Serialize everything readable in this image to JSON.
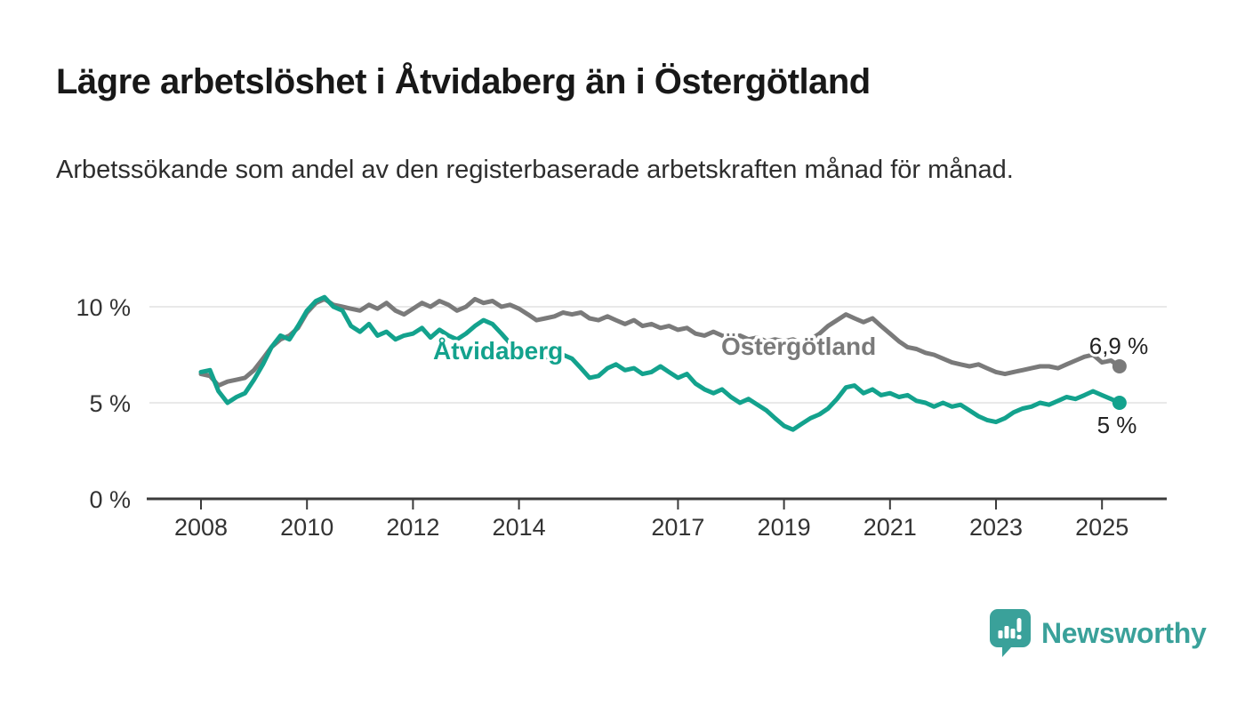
{
  "header": {
    "title": "Lägre arbetslöshet i Åtvidaberg än i Östergötland",
    "subtitle": "Arbetssökande som andel av den registerbaserade arbetskraften månad för månad."
  },
  "chart_data": {
    "type": "line",
    "title": "Lägre arbetslöshet i Åtvidaberg än i Östergötland",
    "xlabel": "",
    "ylabel": "",
    "y_unit": "%",
    "ylim": [
      0,
      11.2
    ],
    "xlim": [
      2007,
      2026.3
    ],
    "grid": "horizontal",
    "legend_position": "inline-labels",
    "x": [
      2008.0,
      2008.17,
      2008.33,
      2008.5,
      2008.67,
      2008.83,
      2009.0,
      2009.17,
      2009.33,
      2009.5,
      2009.67,
      2009.83,
      2010.0,
      2010.17,
      2010.33,
      2010.5,
      2010.67,
      2010.83,
      2011.0,
      2011.17,
      2011.33,
      2011.5,
      2011.67,
      2011.83,
      2012.0,
      2012.17,
      2012.33,
      2012.5,
      2012.67,
      2012.83,
      2013.0,
      2013.17,
      2013.33,
      2013.5,
      2013.67,
      2013.83,
      2014.0,
      2014.17,
      2014.33,
      2014.5,
      2014.67,
      2014.83,
      2015.0,
      2015.17,
      2015.33,
      2015.5,
      2015.67,
      2015.83,
      2016.0,
      2016.17,
      2016.33,
      2016.5,
      2016.67,
      2016.83,
      2017.0,
      2017.17,
      2017.33,
      2017.5,
      2017.67,
      2017.83,
      2018.0,
      2018.17,
      2018.33,
      2018.5,
      2018.67,
      2018.83,
      2019.0,
      2019.17,
      2019.33,
      2019.5,
      2019.67,
      2019.83,
      2020.0,
      2020.17,
      2020.33,
      2020.5,
      2020.67,
      2020.83,
      2021.0,
      2021.17,
      2021.33,
      2021.5,
      2021.67,
      2021.83,
      2022.0,
      2022.17,
      2022.33,
      2022.5,
      2022.67,
      2022.83,
      2023.0,
      2023.17,
      2023.33,
      2023.5,
      2023.67,
      2023.83,
      2024.0,
      2024.17,
      2024.33,
      2024.5,
      2024.67,
      2024.83,
      2025.0,
      2025.17,
      2025.33
    ],
    "series": [
      {
        "name": "Åtvidaberg",
        "color": "#13a28d",
        "end_value_label": "5 %",
        "values": [
          6.6,
          6.7,
          5.6,
          5.0,
          5.3,
          5.5,
          6.2,
          7.0,
          7.9,
          8.5,
          8.3,
          9.0,
          9.8,
          10.3,
          10.5,
          10.0,
          9.8,
          9.0,
          8.7,
          9.1,
          8.5,
          8.7,
          8.3,
          8.5,
          8.6,
          8.9,
          8.4,
          8.8,
          8.5,
          8.3,
          8.6,
          9.0,
          9.3,
          9.1,
          8.6,
          8.1,
          7.7,
          7.4,
          7.6,
          7.4,
          7.2,
          7.5,
          7.3,
          6.8,
          6.3,
          6.4,
          6.8,
          7.0,
          6.7,
          6.8,
          6.5,
          6.6,
          6.9,
          6.6,
          6.3,
          6.5,
          6.0,
          5.7,
          5.5,
          5.7,
          5.3,
          5.0,
          5.2,
          4.9,
          4.6,
          4.2,
          3.8,
          3.6,
          3.9,
          4.2,
          4.4,
          4.7,
          5.2,
          5.8,
          5.9,
          5.5,
          5.7,
          5.4,
          5.5,
          5.3,
          5.4,
          5.1,
          5.0,
          4.8,
          5.0,
          4.8,
          4.9,
          4.6,
          4.3,
          4.1,
          4.0,
          4.2,
          4.5,
          4.7,
          4.8,
          5.0,
          4.9,
          5.1,
          5.3,
          5.2,
          5.4,
          5.6,
          5.4,
          5.2,
          5.0
        ]
      },
      {
        "name": "Östergötland",
        "color": "#7a7a7a",
        "end_value_label": "6,9 %",
        "values": [
          6.5,
          6.4,
          5.9,
          6.1,
          6.2,
          6.3,
          6.7,
          7.3,
          7.9,
          8.3,
          8.5,
          8.9,
          9.7,
          10.2,
          10.4,
          10.1,
          10.0,
          9.9,
          9.8,
          10.1,
          9.9,
          10.2,
          9.8,
          9.6,
          9.9,
          10.2,
          10.0,
          10.3,
          10.1,
          9.8,
          10.0,
          10.4,
          10.2,
          10.3,
          10.0,
          10.1,
          9.9,
          9.6,
          9.3,
          9.4,
          9.5,
          9.7,
          9.6,
          9.7,
          9.4,
          9.3,
          9.5,
          9.3,
          9.1,
          9.3,
          9.0,
          9.1,
          8.9,
          9.0,
          8.8,
          8.9,
          8.6,
          8.5,
          8.7,
          8.5,
          8.4,
          8.5,
          8.3,
          8.4,
          8.2,
          8.3,
          8.2,
          8.3,
          8.1,
          8.3,
          8.6,
          9.0,
          9.3,
          9.6,
          9.4,
          9.2,
          9.4,
          9.0,
          8.6,
          8.2,
          7.9,
          7.8,
          7.6,
          7.5,
          7.3,
          7.1,
          7.0,
          6.9,
          7.0,
          6.8,
          6.6,
          6.5,
          6.6,
          6.7,
          6.8,
          6.9,
          6.9,
          6.8,
          7.0,
          7.2,
          7.4,
          7.5,
          7.1,
          7.2,
          6.9
        ]
      }
    ],
    "y_ticks": [
      {
        "value": 0,
        "label": "0 %"
      },
      {
        "value": 5,
        "label": "5 %"
      },
      {
        "value": 10,
        "label": "10 %"
      }
    ],
    "x_ticks": [
      {
        "value": 2008,
        "label": "2008"
      },
      {
        "value": 2010,
        "label": "2010"
      },
      {
        "value": 2012,
        "label": "2012"
      },
      {
        "value": 2014,
        "label": "2014"
      },
      {
        "value": 2017,
        "label": "2017"
      },
      {
        "value": 2019,
        "label": "2019"
      },
      {
        "value": 2021,
        "label": "2021"
      },
      {
        "value": 2023,
        "label": "2023"
      },
      {
        "value": 2025,
        "label": "2025"
      }
    ]
  },
  "footer": {
    "brand": "Newsworthy",
    "brand_color": "#3aa19a",
    "logo_icon": "newsworthy-speech-bubble-barchart-icon"
  },
  "colors": {
    "accent_teal": "#13a28d",
    "series_gray": "#7a7a7a",
    "axis": "#3b3b3b",
    "gridline": "#e2e2e2"
  }
}
